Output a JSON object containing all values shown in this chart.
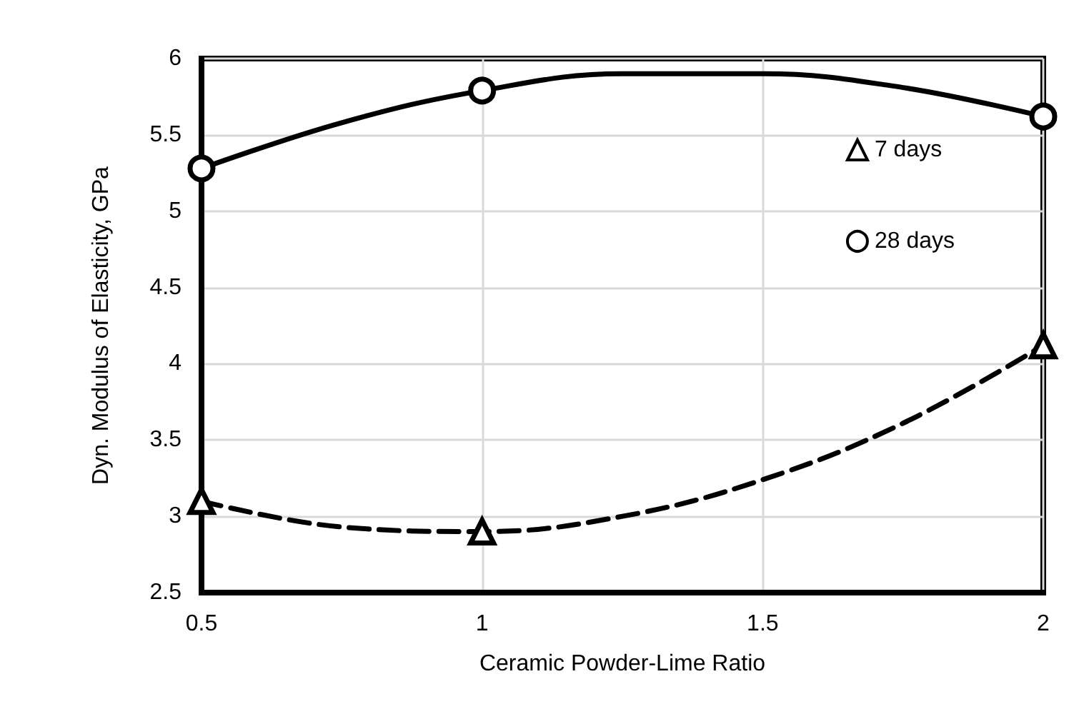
{
  "chart_data": {
    "type": "scatter",
    "xlabel": "Ceramic Powder-Lime Ratio",
    "ylabel": "Dyn. Modulus of Elasticity, GPa",
    "xlim": [
      0.5,
      2
    ],
    "xticks": [
      0.5,
      1,
      1.5,
      2
    ],
    "ylim": [
      2.5,
      6
    ],
    "yticks": [
      2.5,
      3,
      3.5,
      4,
      4.5,
      5,
      5.5,
      6
    ],
    "grid": true,
    "legend": "right",
    "series": [
      {
        "name": "7 days",
        "marker": "triangle",
        "color": "#000000",
        "x": [
          0.5,
          1,
          2
        ],
        "values": [
          3.1,
          2.9,
          4.12
        ]
      },
      {
        "name": "28 days",
        "marker": "circle",
        "color": "#000000",
        "x": [
          0.5,
          1,
          2
        ],
        "values": [
          5.28,
          5.79,
          5.62
        ]
      },
      {
        "type": "line",
        "marker": "none",
        "line_style": "dashed",
        "color": "#000000",
        "x": [
          0.5,
          0.75,
          1,
          1.25,
          1.5,
          1.75,
          2
        ],
        "values": [
          3.1,
          2.93,
          2.9,
          3.0,
          3.24,
          3.61,
          4.12
        ]
      },
      {
        "type": "line",
        "marker": "none",
        "line_style": "solid",
        "color": "#000000",
        "x": [
          0.5,
          0.75,
          1,
          1.25,
          1.5,
          1.75,
          2
        ],
        "values": [
          5.28,
          5.58,
          5.79,
          5.9,
          5.9,
          5.81,
          5.62
        ]
      }
    ]
  }
}
